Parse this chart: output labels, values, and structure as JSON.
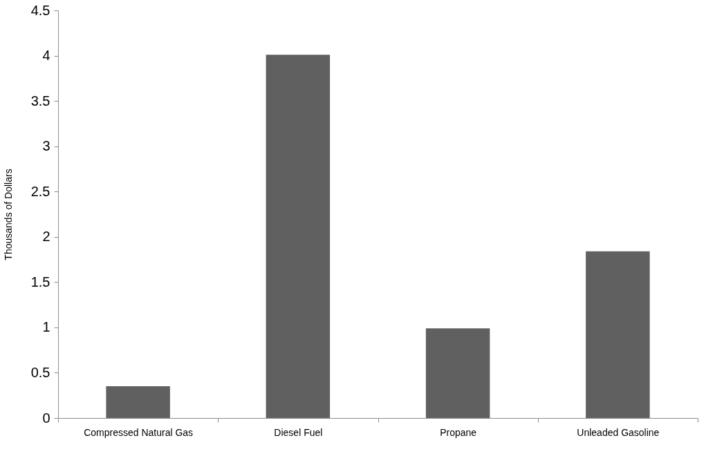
{
  "chart_data": {
    "type": "bar",
    "ylabel": "Thousands of Dollars",
    "categories": [
      "Compressed Natural Gas",
      "Diesel Fuel",
      "Propane",
      "Unleaded Gasoline"
    ],
    "values": [
      0.35,
      4.01,
      0.99,
      1.84
    ],
    "color": "#606060",
    "ylim": [
      0,
      4.5
    ],
    "yticks": [
      0,
      0.5,
      1,
      1.5,
      2,
      2.5,
      3,
      3.5,
      4,
      4.5
    ],
    "grid": false
  }
}
